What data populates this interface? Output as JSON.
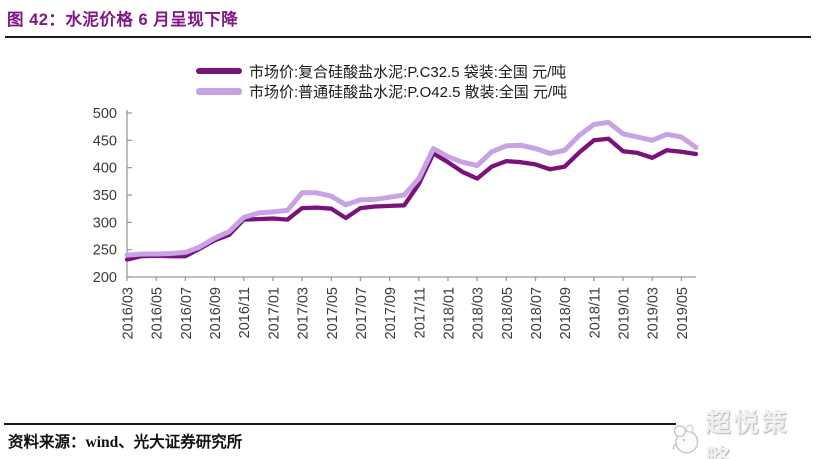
{
  "title": "图 42：水泥价格 6 月呈现下降",
  "footer": {
    "source": "资料来源：wind、光大证券研究所"
  },
  "watermark": {
    "text": "超悦策略",
    "logo": "mascot-logo"
  },
  "chart_data": {
    "type": "line",
    "title": "水泥价格6月呈现下降",
    "xlabel": "",
    "ylabel": "元/吨",
    "ylim": [
      200,
      500
    ],
    "y_ticks": [
      200,
      250,
      300,
      350,
      400,
      450,
      500
    ],
    "x_tick_every": 2,
    "grid": false,
    "legend_position": "top",
    "axis_color": "#9b9b9b",
    "tick_label_color": "#3a3a3a",
    "x": [
      "2016/03",
      "2016/04",
      "2016/05",
      "2016/06",
      "2016/07",
      "2016/08",
      "2016/09",
      "2016/10",
      "2016/11",
      "2016/12",
      "2017/01",
      "2017/02",
      "2017/03",
      "2017/04",
      "2017/05",
      "2017/06",
      "2017/07",
      "2017/08",
      "2017/09",
      "2017/10",
      "2017/11",
      "2017/12",
      "2018/01",
      "2018/02",
      "2018/03",
      "2018/04",
      "2018/05",
      "2018/06",
      "2018/07",
      "2018/08",
      "2018/09",
      "2018/10",
      "2018/11",
      "2018/12",
      "2019/01",
      "2019/02",
      "2019/03",
      "2019/04",
      "2019/05",
      "2019/06"
    ],
    "series": [
      {
        "name": "市场价:复合硅酸盐水泥:P.C32.5 袋装:全国 元/吨",
        "color": "#7A127C",
        "values": [
          232,
          238,
          239,
          238,
          238,
          252,
          267,
          277,
          305,
          306,
          307,
          305,
          326,
          327,
          325,
          308,
          326,
          329,
          330,
          331,
          370,
          426,
          410,
          392,
          380,
          402,
          412,
          410,
          406,
          397,
          402,
          428,
          450,
          453,
          430,
          427,
          418,
          432,
          429,
          425
        ]
      },
      {
        "name": "市场价:普通硅酸盐水泥:P.O42.5 散装:全国 元/吨",
        "color": "#C7A3E6",
        "values": [
          240,
          242,
          242,
          243,
          245,
          255,
          271,
          283,
          309,
          317,
          319,
          322,
          354,
          354,
          348,
          332,
          341,
          342,
          346,
          350,
          380,
          435,
          420,
          410,
          404,
          429,
          440,
          441,
          435,
          426,
          432,
          459,
          479,
          483,
          462,
          456,
          450,
          461,
          456,
          437
        ]
      }
    ]
  }
}
